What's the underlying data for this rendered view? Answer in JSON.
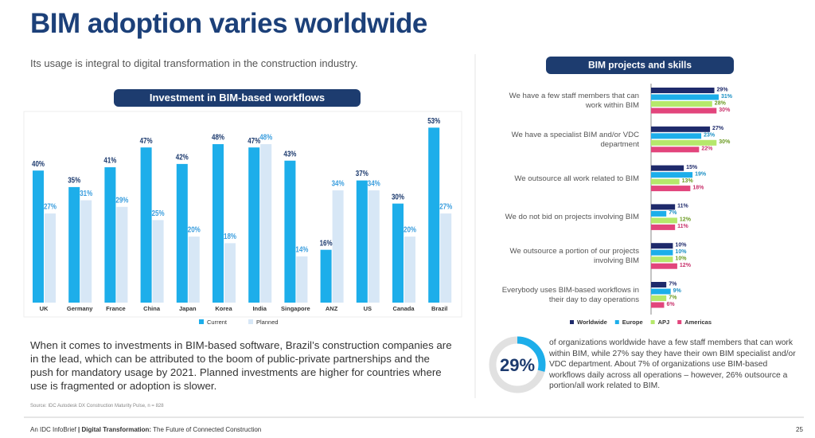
{
  "header": {
    "title": "BIM adoption varies worldwide",
    "subtitle": "Its usage is integral to digital transformation in the construction industry."
  },
  "chart_data": [
    {
      "type": "bar",
      "title": "Investment in BIM-based workflows",
      "categories": [
        "UK",
        "Germany",
        "France",
        "China",
        "Japan",
        "Korea",
        "India",
        "Singapore",
        "ANZ",
        "US",
        "Canada",
        "Brazil"
      ],
      "series": [
        {
          "name": "Current",
          "color": "#1daeea",
          "label_color": "#1c3a6e",
          "values": [
            40,
            35,
            41,
            47,
            42,
            48,
            47,
            43,
            16,
            37,
            30,
            53
          ],
          "value_labels": [
            "40%",
            "35%",
            "41%",
            "47%",
            "42%",
            "48%",
            "47%",
            "43%",
            "16%",
            "37%",
            "30%",
            "53%"
          ]
        },
        {
          "name": "Planned",
          "color": "#d7e7f6",
          "label_color": "#3b9ede",
          "values": [
            27,
            31,
            29,
            25,
            20,
            18,
            48,
            14,
            34,
            34,
            20,
            27
          ],
          "value_labels": [
            "27%",
            "31%",
            "29%",
            "25%",
            "20%",
            "18%",
            "48%",
            "14%",
            "34%",
            "34%",
            "20%",
            "27%"
          ]
        }
      ],
      "ylim": [
        0,
        55
      ]
    },
    {
      "type": "barh",
      "title": "BIM projects and skills",
      "categories": [
        "We have a few staff members that can work within BIM",
        "We have a specialist BIM and/or VDC department",
        "We outsource all work related to BIM",
        "We do not bid on projects involving BIM",
        "We outsource a portion of our projects involving BIM",
        "Everybody uses BIM-based workflows in their day to day operations"
      ],
      "series": [
        {
          "name": "Worldwide",
          "color": "#1e2a6b",
          "label_color": "#1e2a6b",
          "values": [
            29,
            27,
            15,
            11,
            10,
            7
          ],
          "value_labels": [
            "29%",
            "27%",
            "15%",
            "11%",
            "10%",
            "7%"
          ]
        },
        {
          "name": "Europe",
          "color": "#1daeea",
          "label_color": "#1a8fc4",
          "values": [
            31,
            23,
            19,
            7,
            10,
            9
          ],
          "value_labels": [
            "31%",
            "23%",
            "19%",
            "7%",
            "10%",
            "9%"
          ]
        },
        {
          "name": "APJ",
          "color": "#b5e86b",
          "label_color": "#6a9a20",
          "values": [
            28,
            30,
            13,
            12,
            10,
            7
          ],
          "value_labels": [
            "28%",
            "30%",
            "13%",
            "12%",
            "10%",
            "7%"
          ]
        },
        {
          "name": "Americas",
          "color": "#e2457c",
          "label_color": "#c8306a",
          "values": [
            30,
            22,
            18,
            11,
            12,
            6
          ],
          "value_labels": [
            "30%",
            "22%",
            "18%",
            "11%",
            "12%",
            "6%"
          ]
        }
      ],
      "xlim": [
        0,
        35
      ]
    }
  ],
  "callout": {
    "value": 29,
    "value_label": "29%",
    "color": "#1daeea",
    "text": "of organizations worldwide have a few staff members that can work within BIM, while 27% say they have their own BIM specialist and/or VDC department. About 7% of organizations use BIM-based workflows daily across all operations – however, 26% outsource a portion/all work related to BIM."
  },
  "body": "When it comes to investments in BIM-based software, Brazil’s construction companies are in the lead, which can be attributed to the boom of public-private partnerships and the push for mandatory usage by 2021. Planned investments are higher for countries where use is fragmented or adoption is slower.",
  "source": "Source: IDC Autodesk DX Construction Maturity Pulse, n = 828",
  "footer": {
    "publisher": "An IDC InfoBrief",
    "separator": "|",
    "title_bold": "Digital Transformation:",
    "title_rest": "The Future of Connected Construction",
    "page": "25"
  }
}
